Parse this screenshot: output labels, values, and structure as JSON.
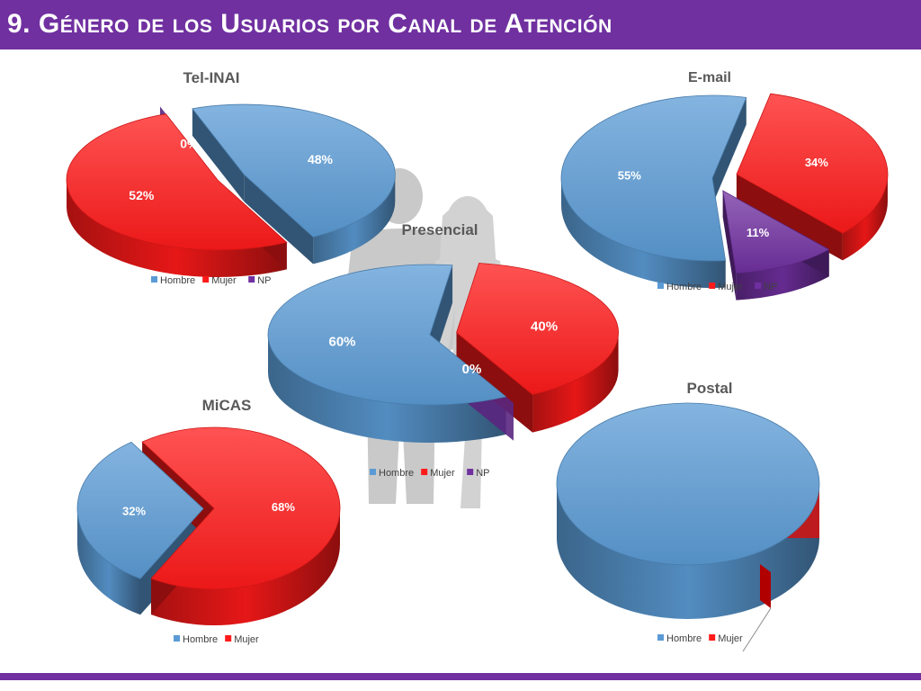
{
  "slide": {
    "title": "9. Género de los Usuarios por Canal de Atención"
  },
  "colors": {
    "header_bar": "#7030a0",
    "hombre": "#5b9bd5",
    "mujer": "#ff1a1a",
    "np": "#7030a0"
  },
  "chart_data": [
    {
      "id": "tel-inai",
      "type": "pie",
      "title": "Tel-INAI",
      "categories": [
        "Hombre",
        "Mujer",
        "NP"
      ],
      "values": [
        48,
        52,
        0
      ],
      "labels": [
        "48%",
        "52%",
        "0%"
      ],
      "legend_position": "bottom"
    },
    {
      "id": "email",
      "type": "pie",
      "title": "E-mail",
      "categories": [
        "Hombre",
        "Mujer",
        "NP"
      ],
      "values": [
        55,
        34,
        11
      ],
      "labels": [
        "55%",
        "34%",
        "11%"
      ],
      "legend_position": "bottom"
    },
    {
      "id": "presencial",
      "type": "pie",
      "title": "Presencial",
      "categories": [
        "Hombre",
        "Mujer",
        "NP"
      ],
      "values": [
        60,
        40,
        0
      ],
      "labels": [
        "60%",
        "40%",
        "0%"
      ],
      "legend_position": "bottom"
    },
    {
      "id": "micas",
      "type": "pie",
      "title": "MiCAS",
      "categories": [
        "Hombre",
        "Mujer"
      ],
      "values": [
        32,
        68
      ],
      "labels": [
        "32%",
        "68%"
      ],
      "legend_position": "bottom"
    },
    {
      "id": "postal",
      "type": "pie",
      "title": "Postal",
      "categories": [
        "Hombre",
        "Mujer"
      ],
      "values": [
        100,
        0
      ],
      "labels": [
        "",
        ""
      ],
      "legend_position": "bottom"
    }
  ]
}
